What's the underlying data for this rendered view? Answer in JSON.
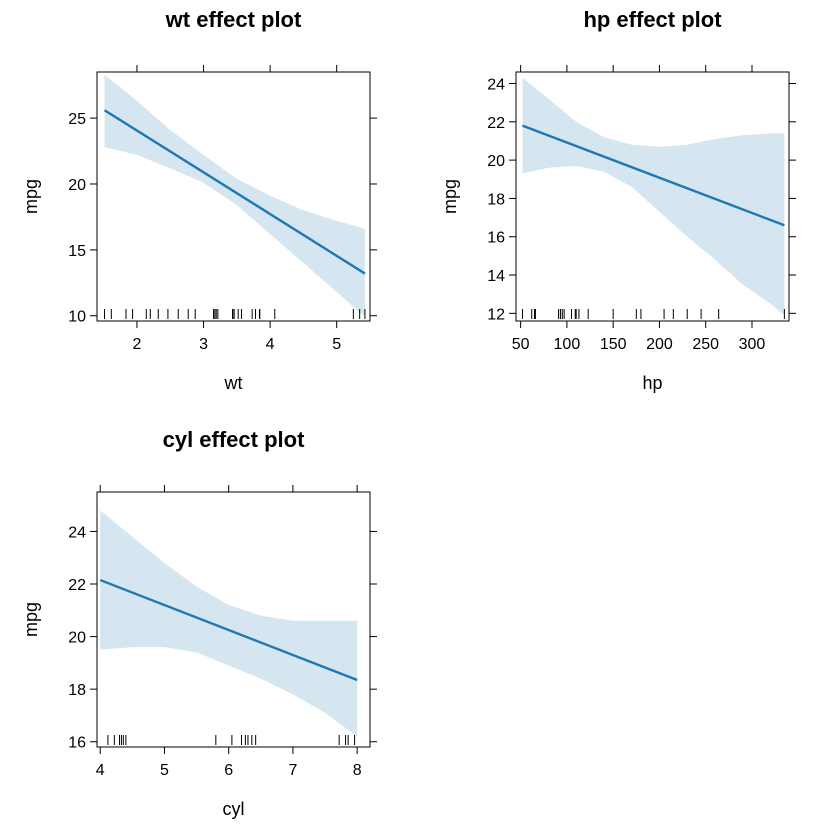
{
  "colors": {
    "fit_line": "#1f77b4",
    "band": "#d5e6f1"
  },
  "chart_data": [
    {
      "type": "line",
      "title": "wt effect plot",
      "xlabel": "wt",
      "ylabel": "mpg",
      "xlim": [
        1.4,
        5.5
      ],
      "ylim": [
        9.6,
        28.5
      ],
      "xticks": [
        2,
        3,
        4,
        5
      ],
      "yticks": [
        10,
        15,
        20,
        25
      ],
      "fit": {
        "x": [
          1.513,
          5.424
        ],
        "y": [
          25.6,
          13.2
        ]
      },
      "band": {
        "x": [
          1.513,
          2.0,
          2.5,
          3.0,
          3.5,
          4.0,
          4.5,
          5.0,
          5.424
        ],
        "lower": [
          22.8,
          22.2,
          21.2,
          20.1,
          18.4,
          16.2,
          14.0,
          11.8,
          9.9
        ],
        "upper": [
          28.3,
          26.3,
          24.1,
          22.2,
          20.4,
          19.1,
          18.0,
          17.2,
          16.6
        ]
      },
      "rug": [
        1.513,
        1.615,
        1.835,
        1.935,
        2.14,
        2.2,
        2.32,
        2.465,
        2.62,
        2.77,
        2.875,
        3.15,
        3.17,
        3.19,
        3.215,
        3.435,
        3.44,
        3.46,
        3.52,
        3.57,
        3.73,
        3.78,
        3.84,
        3.845,
        4.07,
        5.25,
        5.345,
        5.424
      ]
    },
    {
      "type": "line",
      "title": "hp effect plot",
      "xlabel": "hp",
      "ylabel": "mpg",
      "xlim": [
        45,
        340
      ],
      "ylim": [
        11.6,
        24.6
      ],
      "xticks": [
        50,
        100,
        150,
        200,
        250,
        300
      ],
      "yticks": [
        12,
        14,
        16,
        18,
        20,
        22,
        24
      ],
      "fit": {
        "x": [
          52,
          335
        ],
        "y": [
          21.8,
          16.6
        ]
      },
      "band": {
        "x": [
          52,
          80,
          110,
          140,
          170,
          200,
          230,
          260,
          290,
          320,
          335
        ],
        "lower": [
          19.3,
          19.6,
          19.7,
          19.4,
          18.6,
          17.3,
          16.0,
          14.8,
          13.5,
          12.5,
          11.9
        ],
        "upper": [
          24.3,
          23.2,
          22.0,
          21.2,
          20.8,
          20.7,
          20.8,
          21.1,
          21.3,
          21.4,
          21.4
        ]
      },
      "rug": [
        52,
        62,
        65,
        66,
        91,
        93,
        95,
        97,
        105,
        109,
        110,
        113,
        123,
        150,
        175,
        180,
        205,
        215,
        230,
        245,
        264,
        335
      ]
    },
    {
      "type": "line",
      "title": "cyl effect plot",
      "xlabel": "cyl",
      "ylabel": "mpg",
      "xlim": [
        3.95,
        8.2
      ],
      "ylim": [
        15.8,
        25.5
      ],
      "xticks": [
        4,
        5,
        6,
        7,
        8
      ],
      "yticks": [
        16,
        18,
        20,
        22,
        24
      ],
      "fit": {
        "x": [
          4,
          8
        ],
        "y": [
          22.15,
          18.35
        ]
      },
      "band": {
        "x": [
          4,
          4.5,
          5,
          5.5,
          6,
          6.5,
          7,
          7.5,
          8
        ],
        "lower": [
          19.5,
          19.6,
          19.6,
          19.4,
          18.9,
          18.4,
          17.8,
          17.1,
          16.2
        ],
        "upper": [
          24.8,
          23.8,
          22.8,
          21.9,
          21.2,
          20.8,
          20.6,
          20.6,
          20.6
        ]
      },
      "rug": [
        4.12,
        4.22,
        4.3,
        4.33,
        4.36,
        4.4,
        5.8,
        6.05,
        6.2,
        6.26,
        6.3,
        6.36,
        6.42,
        7.72,
        7.82,
        7.86,
        7.96
      ]
    }
  ]
}
